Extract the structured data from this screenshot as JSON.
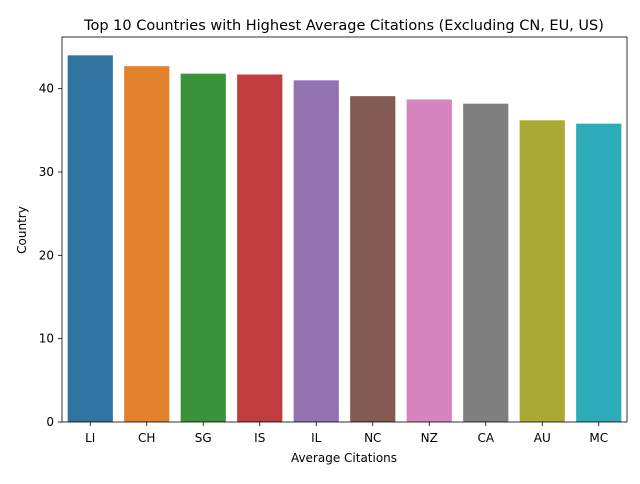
{
  "chart_data": {
    "type": "bar",
    "title": "Top 10 Countries with Highest Average Citations (Excluding CN, EU, US)",
    "xlabel": "Average Citations",
    "ylabel": "Country",
    "categories": [
      "LI",
      "CH",
      "SG",
      "IS",
      "IL",
      "NC",
      "NZ",
      "CA",
      "AU",
      "MC"
    ],
    "values": [
      44.0,
      42.7,
      41.8,
      41.7,
      41.0,
      39.1,
      38.7,
      38.2,
      36.2,
      35.8
    ],
    "colors": [
      "#3274a1",
      "#e1812c",
      "#3a923a",
      "#c03d3e",
      "#9372b2",
      "#845b53",
      "#d684bd",
      "#7f7f7f",
      "#a9aa35",
      "#2eabb8"
    ],
    "ylim": [
      0,
      46.2
    ],
    "yticks": [
      0,
      10,
      20,
      30,
      40
    ],
    "grid": false,
    "legend": "none"
  }
}
